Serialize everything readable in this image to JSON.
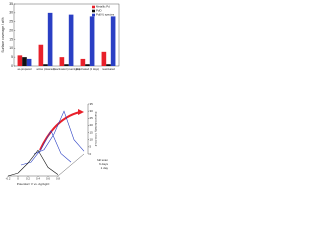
{
  "chart_data": [
    {
      "type": "bar",
      "y_label": "Surface coverage / at%",
      "categories": [
        "as-prepared",
        "active (cleaned)",
        "deactivated (overnight)",
        "deactivated (2 days)",
        "reactivated"
      ],
      "series": [
        {
          "name": "Metallic Pd",
          "color": "#e8202a",
          "values": [
            6,
            12,
            5,
            4,
            8
          ]
        },
        {
          "name": "PdO",
          "color": "#111111",
          "values": [
            5,
            1,
            1,
            1,
            1
          ]
        },
        {
          "name": "Pd(IV) species",
          "color": "#2a3fc4",
          "values": [
            4,
            30,
            29,
            28,
            28
          ]
        }
      ],
      "ylim": [
        0,
        35
      ],
      "yticks": [
        0,
        5,
        10,
        15,
        20,
        25,
        30,
        35
      ],
      "legend": "top-right"
    },
    {
      "type": "waterfall",
      "x_label": "Potential / V vs. Ag/AgCl",
      "y_label": "Current density / mA cm-2",
      "x": [
        -0.2,
        0,
        0.2,
        0.4,
        0.6,
        0.8
      ],
      "series": [
        {
          "name": "full scan",
          "color": "#2a3fc4",
          "values": [
            0,
            3,
            14,
            30,
            10,
            2
          ]
        },
        {
          "name": "6 days",
          "color": "#2a3fc4",
          "values": [
            0,
            2,
            11,
            24,
            8,
            2
          ]
        },
        {
          "name": "1 day",
          "color": "#111111",
          "values": [
            0,
            2,
            9,
            18,
            6,
            1
          ]
        }
      ],
      "xlim": [
        -0.2,
        0.8
      ],
      "xticks": [
        -0.2,
        0,
        0.2,
        0.4,
        0.6,
        0.8
      ],
      "ylim": [
        0,
        35
      ],
      "yticks": [
        0,
        5,
        10,
        15,
        20,
        25,
        30,
        35
      ]
    }
  ]
}
